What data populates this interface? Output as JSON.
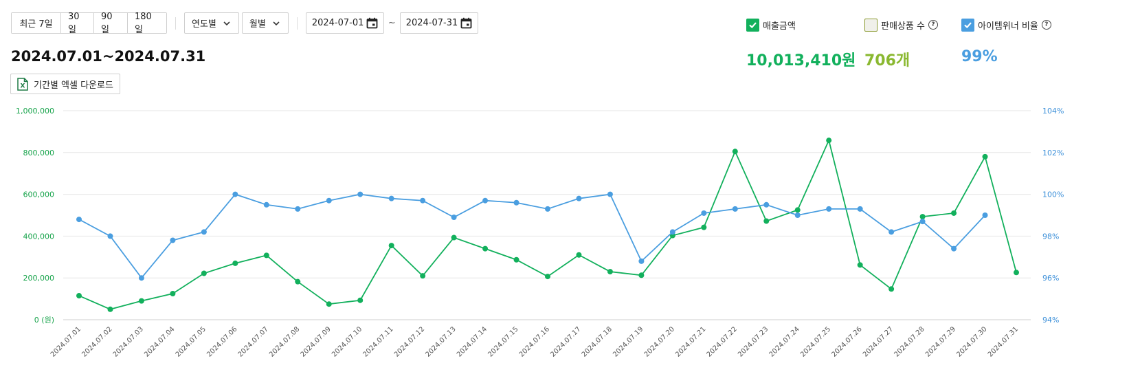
{
  "filters": {
    "periods": [
      "최근 7일",
      "30일",
      "90일",
      "180일"
    ],
    "year_select": "연도별",
    "month_select": "월별",
    "date_from": "2024-07-01",
    "date_sep": "~",
    "date_to": "2024-07-31"
  },
  "range_title": "2024.07.01~2024.07.31",
  "excel_button": "기간별 엑셀 다운로드",
  "metrics": [
    {
      "label": "매출금액",
      "value": "10,013,410원",
      "checked": true,
      "color": "#12b05c",
      "help": false
    },
    {
      "label": "판매상품 수",
      "value": "706개",
      "checked": false,
      "color": "#8ab830",
      "help": true
    },
    {
      "label": "아이템위너 비율",
      "value": "99%",
      "checked": true,
      "color": "#4a9ee0",
      "help": true
    }
  ],
  "chart_data": {
    "type": "line",
    "x": [
      "2024.07.01",
      "2024.07.02",
      "2024.07.03",
      "2024.07.04",
      "2024.07.05",
      "2024.07.06",
      "2024.07.07",
      "2024.07.08",
      "2024.07.09",
      "2024.07.10",
      "2024.07.11",
      "2024.07.12",
      "2024.07.13",
      "2024.07.14",
      "2024.07.15",
      "2024.07.16",
      "2024.07.17",
      "2024.07.18",
      "2024.07.19",
      "2024.07.20",
      "2024.07.21",
      "2024.07.22",
      "2024.07.23",
      "2024.07.24",
      "2024.07.25",
      "2024.07.26",
      "2024.07.27",
      "2024.07.28",
      "2024.07.29",
      "2024.07.30",
      "2024.07.31"
    ],
    "left_axis": {
      "ylim": [
        0,
        1000000
      ],
      "ticks": [
        "0 (원)",
        "200,000",
        "400,000",
        "600,000",
        "800,000",
        "1,000,000"
      ],
      "color": "#16a34a"
    },
    "right_axis": {
      "ylim": [
        94,
        104
      ],
      "ticks": [
        "94%",
        "96%",
        "98%",
        "100%",
        "102%",
        "104%"
      ],
      "color": "#3b8fd9"
    },
    "grid": true,
    "series": [
      {
        "axis": "left",
        "color": "#12b05c",
        "values": [
          115000,
          50000,
          90000,
          125000,
          222000,
          270000,
          308000,
          182000,
          75000,
          93000,
          355000,
          210000,
          393000,
          340000,
          287000,
          207000,
          310000,
          230000,
          213000,
          403000,
          442000,
          805000,
          472000,
          525000,
          858000,
          262000,
          147000,
          493000,
          510000,
          780000,
          226000
        ]
      },
      {
        "axis": "right",
        "color": "#4a9ee0",
        "values": [
          98.8,
          98.0,
          96.0,
          97.8,
          98.2,
          100.0,
          99.5,
          99.3,
          99.7,
          100.0,
          99.8,
          99.7,
          98.9,
          99.7,
          99.6,
          99.3,
          99.8,
          100.0,
          96.8,
          98.2,
          99.1,
          99.3,
          99.5,
          99.0,
          99.3,
          99.3,
          98.2,
          98.7,
          97.4,
          99.0,
          null
        ]
      }
    ]
  }
}
